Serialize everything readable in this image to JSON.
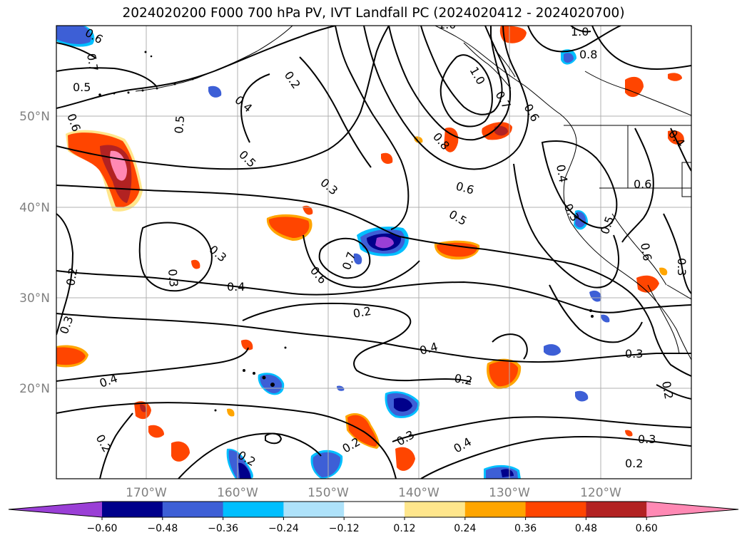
{
  "title": "2024020200 F000 700 hPa PV, IVT Landfall PC (2024020412 - 2024020700)",
  "map": {
    "lat_labels": [
      "50°N",
      "40°N",
      "30°N",
      "20°N"
    ],
    "lon_labels": [
      "170°W",
      "160°W",
      "150°W",
      "140°W",
      "130°W",
      "120°W"
    ],
    "contour_labels": [
      "0.2",
      "0.3",
      "0.4",
      "0.5",
      "0.6",
      "0.7",
      "0.8",
      "1.0"
    ],
    "colors": {
      "neg_3": "#9a3fd6",
      "neg_2": "#000090",
      "neg_1": "#3d5fd6",
      "neg_0": "#00c0ff",
      "neg_light": "#b0e4ff",
      "pos_light": "#ffe68c",
      "pos_0": "#ffa500",
      "pos_1": "#ff4500",
      "pos_2": "#b22222",
      "pos_3": "#ff89b4"
    }
  },
  "colorbar": {
    "ticks": [
      "−0.60",
      "−0.48",
      "−0.36",
      "−0.24",
      "−0.12",
      "0.12",
      "0.24",
      "0.36",
      "0.48",
      "0.60"
    ],
    "colors": [
      "#9a3fd6",
      "#00008b",
      "#3d5fd6",
      "#00bfff",
      "#aee2fa",
      "#ffffff",
      "#ffe68c",
      "#ffa500",
      "#ff4500",
      "#b22222",
      "#ff89b4"
    ]
  }
}
